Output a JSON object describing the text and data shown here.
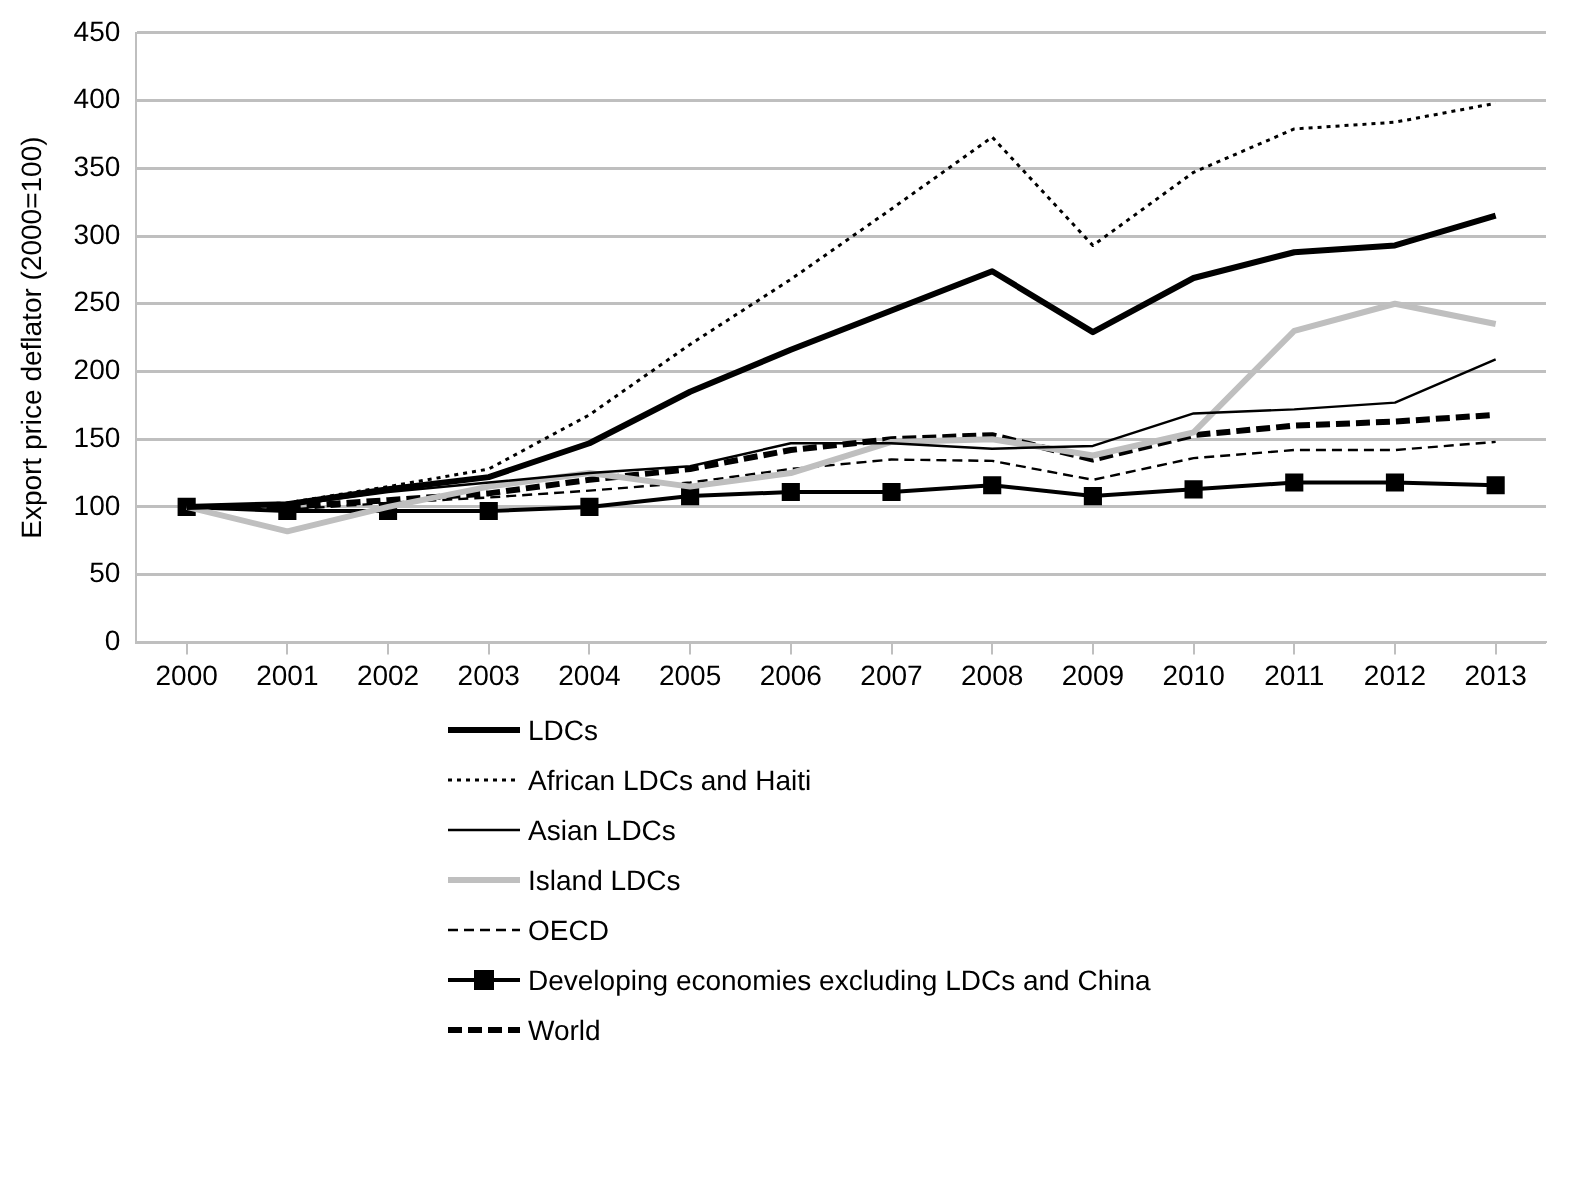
{
  "chart_data": {
    "type": "line",
    "ylabel": "Export price deflator (2000=100)",
    "categories": [
      "2000",
      "2001",
      "2002",
      "2003",
      "2004",
      "2005",
      "2006",
      "2007",
      "2008",
      "2009",
      "2010",
      "2011",
      "2012",
      "2013"
    ],
    "series": [
      {
        "name": "LDCs",
        "color": "#000000",
        "line_style": "solid",
        "marker": "none",
        "values": [
          100,
          102,
          113,
          122,
          147,
          185,
          216,
          245,
          274,
          229,
          269,
          288,
          293,
          315
        ]
      },
      {
        "name": "African LDCs and Haiti",
        "color": "#000000",
        "line_style": "dotted",
        "marker": "none",
        "values": [
          100,
          103,
          115,
          128,
          168,
          220,
          268,
          320,
          373,
          293,
          347,
          379,
          384,
          398
        ]
      },
      {
        "name": "Asian LDCs",
        "color": "#000000",
        "line_style": "solid",
        "marker": "none",
        "values": [
          100,
          101,
          111,
          118,
          125,
          130,
          147,
          147,
          143,
          145,
          169,
          172,
          177,
          209
        ]
      },
      {
        "name": "Island LDCs",
        "color": "#bfbfbf",
        "line_style": "solid",
        "marker": "none",
        "values": [
          100,
          82,
          100,
          115,
          125,
          115,
          125,
          148,
          150,
          138,
          155,
          230,
          250,
          235
        ]
      },
      {
        "name": "OECD",
        "color": "#000000",
        "line_style": "dashed",
        "marker": "none",
        "values": [
          100,
          98,
          103,
          107,
          112,
          118,
          128,
          135,
          134,
          120,
          136,
          142,
          142,
          148
        ]
      },
      {
        "name": "Developing economies excluding LDCs and China",
        "color": "#000000",
        "line_style": "solid",
        "marker": "square",
        "values": [
          100,
          97,
          97,
          97,
          100,
          108,
          111,
          111,
          116,
          108,
          113,
          118,
          118,
          116
        ]
      },
      {
        "name": "World",
        "color": "#000000",
        "line_style": "dashed",
        "marker": "none",
        "values": [
          100,
          100,
          105,
          110,
          120,
          128,
          142,
          150,
          153,
          135,
          153,
          160,
          163,
          168
        ]
      }
    ],
    "ylim": [
      0,
      450
    ],
    "yticks": [
      0,
      50,
      100,
      150,
      200,
      250,
      300,
      350,
      400,
      450
    ],
    "grid": "y",
    "legend": "bottom"
  }
}
